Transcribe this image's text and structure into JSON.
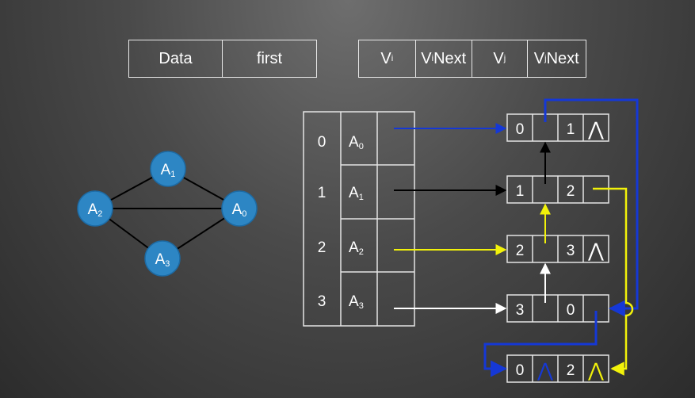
{
  "vertex_header": {
    "data": "Data",
    "first": "first"
  },
  "edge_header": {
    "vi": {
      "base": "V",
      "sub": "i",
      "rest": ""
    },
    "vinext": {
      "base": "V",
      "sub": "i",
      "rest": "Next"
    },
    "vj": {
      "base": "V",
      "sub": "j",
      "rest": ""
    },
    "vjnext": {
      "base": "V",
      "sub": "j",
      "rest": "Next"
    }
  },
  "graph": {
    "nodes": [
      {
        "base": "A",
        "sub": "1"
      },
      {
        "base": "A",
        "sub": "2"
      },
      {
        "base": "A",
        "sub": "0"
      },
      {
        "base": "A",
        "sub": "3"
      }
    ]
  },
  "vertex_table": [
    {
      "index": "0",
      "base": "A",
      "sub": "0"
    },
    {
      "index": "1",
      "base": "A",
      "sub": "1"
    },
    {
      "index": "2",
      "base": "A",
      "sub": "2"
    },
    {
      "index": "3",
      "base": "A",
      "sub": "3"
    }
  ],
  "edge_nodes": [
    {
      "vi": "0",
      "vj": "1",
      "null_symbol": "⋀"
    },
    {
      "vi": "1",
      "vj": "2",
      "null_symbol": ""
    },
    {
      "vi": "2",
      "vj": "3",
      "null_symbol": "⋀"
    },
    {
      "vi": "3",
      "vj": "0",
      "null_symbol": ""
    },
    {
      "vi": "0",
      "vj": "2",
      "null_symbol": "⋀"
    }
  ],
  "colors": {
    "node_fill": "#2d86c4",
    "blue": "#1538d6",
    "yellow": "#f2f20a",
    "black": "#000000",
    "white": "#ffffff",
    "line": "#e4e4e4"
  }
}
